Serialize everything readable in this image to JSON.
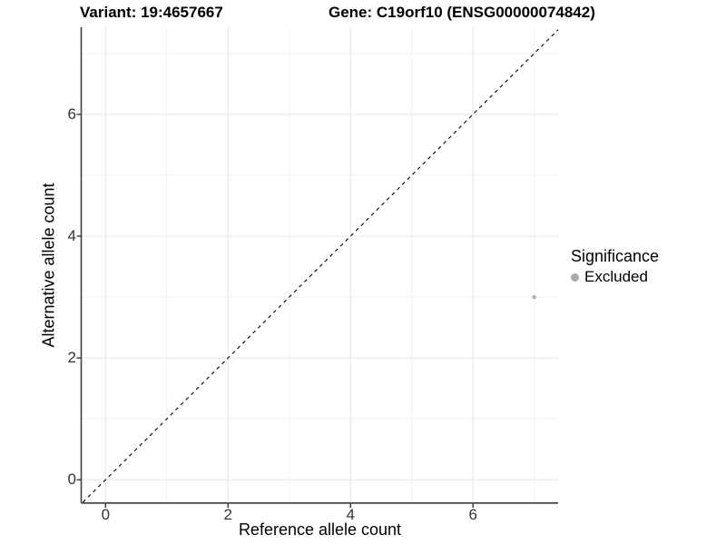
{
  "figure": {
    "title_left": "Variant: 19:4657667",
    "title_right": "Gene: C19orf10 (ENSG00000074842)"
  },
  "chart_data": {
    "type": "scatter",
    "title": "Variant: 19:4657667   Gene: C19orf10 (ENSG00000074842)",
    "xlabel": "Reference allele count",
    "ylabel": "Alternative allele count",
    "xlim": [
      -0.39,
      7.39
    ],
    "ylim": [
      -0.37,
      7.43
    ],
    "x_major_ticks": [
      0,
      2,
      4,
      6
    ],
    "y_major_ticks": [
      0,
      2,
      4,
      6
    ],
    "x_minor_ticks": [
      1,
      3,
      5,
      7
    ],
    "y_minor_ticks": [
      1,
      3,
      5,
      7
    ],
    "grid": "on",
    "identity_line": {
      "equation": "y = x",
      "style": "dashed",
      "color": "#000000"
    },
    "series": [
      {
        "name": "Excluded",
        "color": "#b3b3b3",
        "points": [
          {
            "x": 7,
            "y": 3
          }
        ]
      }
    ],
    "legend": {
      "title": "Significance",
      "position": "right",
      "items": [
        {
          "label": "Excluded",
          "color": "#aaaaaa"
        }
      ]
    }
  },
  "colors": {
    "background": "#ffffff",
    "grid_major": "#e5e5e5",
    "grid_minor": "#f1f1f1",
    "axis_line": "#3f3f3f",
    "tick_mark": "#333333",
    "tick_label": "#333333",
    "title_text": "#000000"
  }
}
